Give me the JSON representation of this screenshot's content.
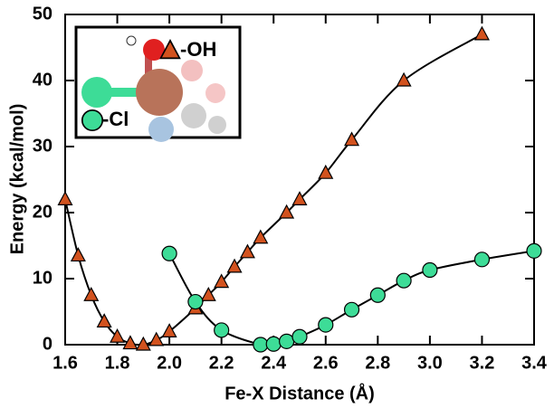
{
  "chart_data": {
    "type": "line",
    "xlabel": "Fe-X Distance (Å)",
    "ylabel": "Energy (kcal/mol)",
    "xlim": [
      1.6,
      3.4
    ],
    "ylim": [
      0,
      50
    ],
    "xticks": [
      1.6,
      1.8,
      {
        "value": 2,
        "label": "2.0"
      },
      2.2,
      2.4,
      2.6,
      2.8,
      {
        "value": 3,
        "label": "3.0"
      },
      3.2,
      3.4
    ],
    "yticks": [
      0,
      10,
      20,
      30,
      40,
      50
    ],
    "series": [
      {
        "name": "-OH",
        "color": "#d2521e",
        "marker": "triangle",
        "x": [
          1.6,
          1.65,
          1.7,
          1.75,
          1.8,
          1.85,
          1.9,
          1.95,
          2.0,
          2.1,
          2.15,
          2.2,
          2.25,
          2.3,
          2.35,
          2.45,
          2.5,
          2.6,
          2.7,
          2.9,
          3.2
        ],
        "values": [
          22,
          13.5,
          7.5,
          3.5,
          1.2,
          0.2,
          0,
          0.7,
          2,
          5.5,
          7.5,
          9.5,
          11.8,
          14,
          16.2,
          20,
          22,
          26,
          31,
          40,
          47
        ]
      },
      {
        "name": "-Cl",
        "color": "#3ddc97",
        "marker": "circle",
        "x": [
          2.0,
          2.1,
          2.2,
          2.35,
          2.4,
          2.45,
          2.5,
          2.6,
          2.7,
          2.8,
          2.9,
          3.0,
          3.2,
          3.4
        ],
        "values": [
          13.8,
          6.5,
          2.2,
          0,
          0.1,
          0.5,
          1.2,
          3,
          5.3,
          7.5,
          9.7,
          11.3,
          12.9,
          14.2
        ]
      }
    ]
  }
}
